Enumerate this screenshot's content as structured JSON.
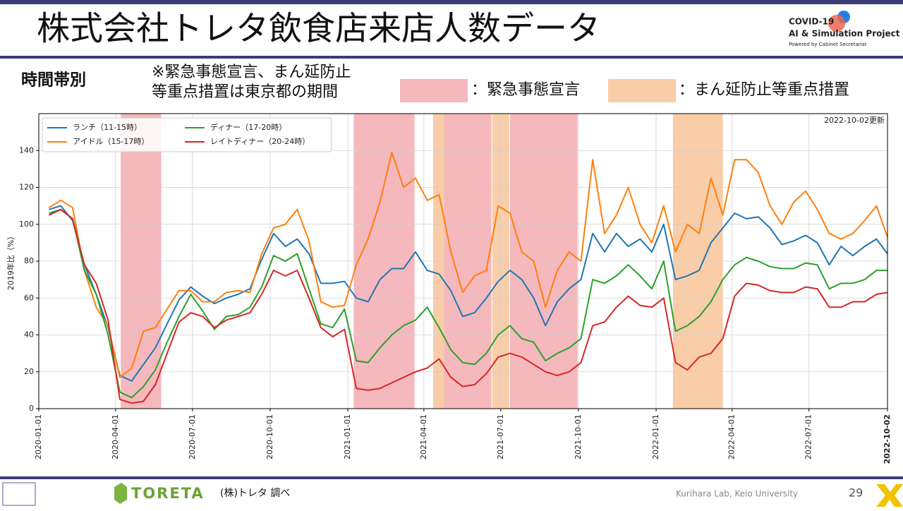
{
  "header": {
    "title": "株式会社トレタ飲食店来店人数データ",
    "logo_line1": "COVID-19",
    "logo_line2": "AI & Simulation Project",
    "logo_line3": "Powered by Cabinet Secretariat",
    "subtitle": "時間帯別",
    "note_line1": "※緊急事態宣言、まん延防止",
    "note_line2": "等重点措置は東京都の期間",
    "shade_label_emergency": "：緊急事態宣言",
    "shade_label_priority": "：まん延防止等重点措置"
  },
  "footer": {
    "brand": "TORETA",
    "source": "(株)トレタ 調べ",
    "credit": "Kurihara Lab, Keio University",
    "page": "29"
  },
  "chart_data": {
    "type": "line",
    "ylabel": "2019年比（%）",
    "annotation": "2022-10-02更新",
    "grid": true,
    "legend": "upper left",
    "xlim": [
      "2020-01-01",
      "2022-10-02"
    ],
    "xticks": [
      "2020-01-01",
      "2020-04-01",
      "2020-07-01",
      "2020-10-01",
      "2021-01-01",
      "2021-04-01",
      "2021-07-01",
      "2021-10-01",
      "2022-01-01",
      "2022-04-01",
      "2022-07-01",
      "2022-10-02"
    ],
    "ylim": [
      0,
      160
    ],
    "yticks": [
      0,
      20,
      40,
      60,
      80,
      100,
      120,
      140
    ],
    "spans": [
      {
        "start": "2020-04-07",
        "end": "2020-05-25",
        "color": "#f5b8bd"
      },
      {
        "start": "2021-01-08",
        "end": "2021-03-21",
        "color": "#f5b8bd"
      },
      {
        "start": "2021-04-12",
        "end": "2021-04-25",
        "color": "#f8cda8"
      },
      {
        "start": "2021-04-25",
        "end": "2021-06-20",
        "color": "#f5b8bd"
      },
      {
        "start": "2021-06-21",
        "end": "2021-07-11",
        "color": "#f8cda8"
      },
      {
        "start": "2021-07-12",
        "end": "2021-09-30",
        "color": "#f5b8bd"
      },
      {
        "start": "2022-01-21",
        "end": "2022-03-21",
        "color": "#f8cda8"
      }
    ],
    "x": [
      "2020-01-13",
      "2020-01-27",
      "2020-02-10",
      "2020-02-24",
      "2020-03-09",
      "2020-03-23",
      "2020-04-06",
      "2020-04-20",
      "2020-05-04",
      "2020-05-18",
      "2020-06-01",
      "2020-06-15",
      "2020-06-29",
      "2020-07-13",
      "2020-07-27",
      "2020-08-10",
      "2020-08-24",
      "2020-09-07",
      "2020-09-21",
      "2020-10-05",
      "2020-10-19",
      "2020-11-02",
      "2020-11-16",
      "2020-11-30",
      "2020-12-14",
      "2020-12-28",
      "2021-01-11",
      "2021-01-25",
      "2021-02-08",
      "2021-02-22",
      "2021-03-08",
      "2021-03-22",
      "2021-04-05",
      "2021-04-19",
      "2021-05-03",
      "2021-05-17",
      "2021-05-31",
      "2021-06-14",
      "2021-06-28",
      "2021-07-12",
      "2021-07-26",
      "2021-08-09",
      "2021-08-23",
      "2021-09-06",
      "2021-09-20",
      "2021-10-04",
      "2021-10-18",
      "2021-11-01",
      "2021-11-15",
      "2021-11-29",
      "2021-12-13",
      "2021-12-27",
      "2022-01-10",
      "2022-01-24",
      "2022-02-07",
      "2022-02-21",
      "2022-03-07",
      "2022-03-21",
      "2022-04-04",
      "2022-04-18",
      "2022-05-02",
      "2022-05-16",
      "2022-05-30",
      "2022-06-13",
      "2022-06-27",
      "2022-07-11",
      "2022-07-25",
      "2022-08-08",
      "2022-08-22",
      "2022-09-05",
      "2022-09-19",
      "2022-10-02"
    ],
    "series": [
      {
        "name": "ランチ（11-15時）",
        "color": "#1f77b4",
        "values": [
          108,
          110,
          102,
          78,
          62,
          44,
          18,
          15,
          24,
          33,
          46,
          59,
          66,
          61,
          57,
          60,
          62,
          65,
          81,
          95,
          88,
          92,
          84,
          68,
          68,
          69,
          60,
          58,
          70,
          76,
          76,
          85,
          75,
          73,
          64,
          50,
          52,
          60,
          69,
          75,
          70,
          60,
          45,
          58,
          65,
          70,
          95,
          85,
          95,
          88,
          92,
          85,
          100,
          70,
          72,
          75,
          90,
          98,
          106,
          103,
          104,
          98,
          89,
          91,
          94,
          90,
          78,
          88,
          83,
          88,
          92,
          84
        ]
      },
      {
        "name": "アイドル（15-17時）",
        "color": "#ff7f0e",
        "values": [
          109,
          113,
          109,
          75,
          55,
          45,
          17,
          22,
          42,
          44,
          54,
          64,
          64,
          58,
          58,
          63,
          64,
          63,
          84,
          98,
          100,
          108,
          91,
          58,
          55,
          56,
          78,
          92,
          112,
          139,
          120,
          125,
          113,
          116,
          85,
          63,
          72,
          75,
          110,
          106,
          85,
          80,
          55,
          75,
          85,
          80,
          135,
          95,
          105,
          120,
          100,
          90,
          110,
          85,
          100,
          95,
          125,
          105,
          135,
          135,
          128,
          110,
          100,
          112,
          118,
          108,
          95,
          92,
          95,
          102,
          110,
          93
        ]
      },
      {
        "name": "ディナー（17-20時）",
        "color": "#2ca02c",
        "values": [
          106,
          108,
          103,
          75,
          62,
          40,
          9,
          6,
          12,
          21,
          36,
          50,
          62,
          53,
          43,
          50,
          51,
          55,
          66,
          83,
          80,
          84,
          65,
          46,
          44,
          54,
          26,
          25,
          33,
          40,
          45,
          48,
          55,
          44,
          32,
          25,
          24,
          30,
          40,
          45,
          38,
          36,
          26,
          30,
          33,
          38,
          70,
          68,
          72,
          78,
          72,
          65,
          80,
          42,
          45,
          50,
          58,
          70,
          78,
          82,
          80,
          77,
          76,
          76,
          79,
          78,
          65,
          68,
          68,
          70,
          75,
          75
        ]
      },
      {
        "name": "レイトディナー（20-24時）",
        "color": "#d62728",
        "values": [
          105,
          108,
          103,
          78,
          68,
          48,
          5,
          3,
          4,
          13,
          30,
          47,
          52,
          50,
          44,
          48,
          50,
          52,
          62,
          75,
          72,
          75,
          60,
          44,
          39,
          43,
          11,
          10,
          11,
          14,
          17,
          20,
          22,
          27,
          17,
          12,
          13,
          19,
          28,
          30,
          28,
          24,
          20,
          18,
          20,
          25,
          45,
          47,
          55,
          61,
          56,
          55,
          60,
          25,
          21,
          28,
          30,
          38,
          61,
          68,
          67,
          64,
          63,
          63,
          66,
          65,
          55,
          55,
          58,
          58,
          62,
          63
        ]
      }
    ]
  }
}
